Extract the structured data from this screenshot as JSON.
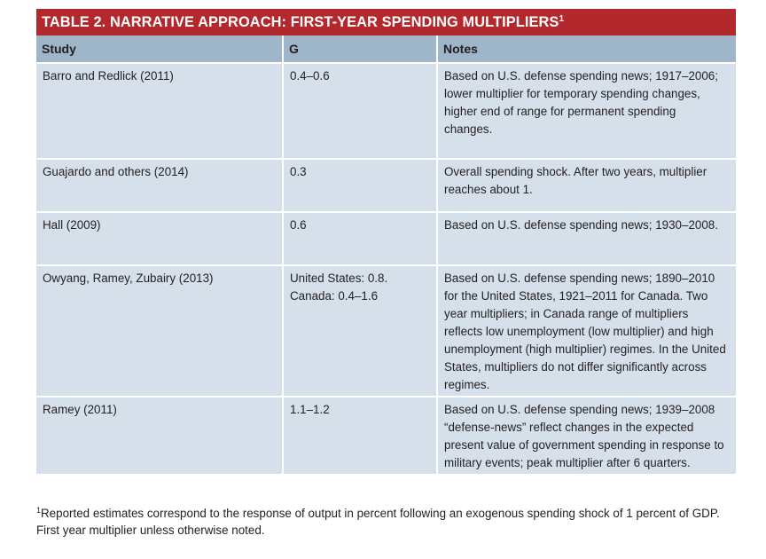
{
  "table": {
    "title": "TABLE 2. NARRATIVE APPROACH: FIRST-YEAR SPENDING MULTIPLIERS",
    "title_footnote_mark": "1",
    "columns": [
      "Study",
      "G",
      "Notes"
    ],
    "colors": {
      "title_bar": "#b3282d",
      "header_row": "#9fb5c9",
      "body_row": "#d5e0ea"
    },
    "rows": [
      {
        "study": "Barro and Redlick (2011)",
        "g": [
          "0.4–0.6"
        ],
        "notes": [
          "Based on U.S. defense spending news; 1917–2006;",
          "lower multiplier for temporary spending changes,",
          "higher end of range for permanent spending",
          "changes."
        ]
      },
      {
        "study": "Guajardo and others (2014)",
        "g": [
          "0.3"
        ],
        "notes": [
          "Overall spending shock. After two years, multiplier",
          "reaches about 1."
        ]
      },
      {
        "study": "Hall (2009)",
        "g": [
          "0.6"
        ],
        "notes": [
          "Based on U.S. defense spending news; 1930–2008."
        ]
      },
      {
        "study": "Owyang, Ramey, Zubairy (2013)",
        "g": [
          "United States: 0.8.",
          "Canada: 0.4–1.6"
        ],
        "notes": [
          "Based on U.S. defense spending news; 1890–2010",
          "for the United States, 1921–2011 for Canada. Two",
          "year multipliers; in Canada range of multipliers",
          "reflects low unemployment (low multiplier) and high",
          "unemployment (high multiplier) regimes. In the United",
          "States, multipliers do not differ significantly across",
          "regimes."
        ]
      },
      {
        "study": "Ramey (2011)",
        "g": [
          "1.1–1.2"
        ],
        "notes": [
          "Based on U.S. defense spending news; 1939–2008",
          "“defense-news” reflect changes in the expected",
          "present value of government spending in response to",
          "military events; peak multiplier after 6 quarters."
        ]
      }
    ]
  },
  "footnote": {
    "mark": "1",
    "lines": [
      "Reported estimates correspond to the response of output in percent following an exogenous spending shock of 1 percent of GDP.",
      "First year multiplier unless otherwise noted."
    ]
  }
}
